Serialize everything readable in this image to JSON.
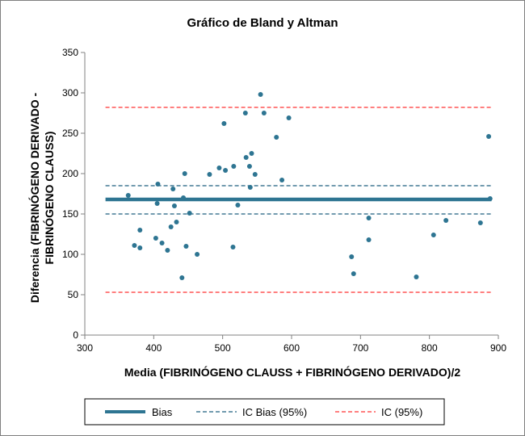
{
  "chart_data": {
    "type": "scatter",
    "title": "Gráfico de Bland y Altman",
    "xlabel": "Media  (FIBRINÓGENO CLAUSS + FIBRINÓGENO DERIVADO)/2",
    "ylabel_lines": [
      "Diferencia  (FIBRINÓGENO DERIVADO -",
      "FIBRINÓGENO CLAUSS)"
    ],
    "xlim": [
      300,
      900
    ],
    "ylim": [
      0,
      350
    ],
    "xticks": [
      300,
      400,
      500,
      600,
      700,
      800,
      900
    ],
    "yticks": [
      0,
      50,
      100,
      150,
      200,
      250,
      300,
      350
    ],
    "grid": false,
    "legend_position": "bottom",
    "points": [
      {
        "x": 363,
        "y": 173
      },
      {
        "x": 372,
        "y": 111
      },
      {
        "x": 380,
        "y": 130
      },
      {
        "x": 380,
        "y": 108
      },
      {
        "x": 403,
        "y": 120
      },
      {
        "x": 405,
        "y": 163
      },
      {
        "x": 406,
        "y": 187
      },
      {
        "x": 412,
        "y": 114
      },
      {
        "x": 420,
        "y": 105
      },
      {
        "x": 425,
        "y": 134
      },
      {
        "x": 428,
        "y": 181
      },
      {
        "x": 430,
        "y": 160
      },
      {
        "x": 433,
        "y": 140
      },
      {
        "x": 441,
        "y": 71
      },
      {
        "x": 443,
        "y": 170
      },
      {
        "x": 445,
        "y": 200
      },
      {
        "x": 447,
        "y": 110
      },
      {
        "x": 452,
        "y": 151
      },
      {
        "x": 463,
        "y": 100
      },
      {
        "x": 481,
        "y": 199
      },
      {
        "x": 495,
        "y": 207
      },
      {
        "x": 502,
        "y": 262
      },
      {
        "x": 504,
        "y": 204
      },
      {
        "x": 515,
        "y": 109
      },
      {
        "x": 516,
        "y": 209
      },
      {
        "x": 522,
        "y": 161
      },
      {
        "x": 533,
        "y": 275
      },
      {
        "x": 534,
        "y": 220
      },
      {
        "x": 539,
        "y": 209
      },
      {
        "x": 540,
        "y": 183
      },
      {
        "x": 542,
        "y": 225
      },
      {
        "x": 547,
        "y": 199
      },
      {
        "x": 555,
        "y": 298
      },
      {
        "x": 560,
        "y": 275
      },
      {
        "x": 578,
        "y": 245
      },
      {
        "x": 586,
        "y": 192
      },
      {
        "x": 596,
        "y": 269
      },
      {
        "x": 687,
        "y": 97
      },
      {
        "x": 690,
        "y": 76
      },
      {
        "x": 712,
        "y": 145
      },
      {
        "x": 712,
        "y": 118
      },
      {
        "x": 781,
        "y": 72
      },
      {
        "x": 806,
        "y": 124
      },
      {
        "x": 824,
        "y": 142
      },
      {
        "x": 874,
        "y": 139
      },
      {
        "x": 886,
        "y": 246
      },
      {
        "x": 888,
        "y": 169
      }
    ],
    "lines": {
      "bias": {
        "y": 168,
        "x_range": [
          330,
          890
        ]
      },
      "ci_bias": {
        "y": [
          150,
          185
        ],
        "x_range": [
          330,
          890
        ]
      },
      "ci_95": {
        "y": [
          53,
          282
        ],
        "x_range": [
          330,
          890
        ]
      }
    },
    "colors": {
      "points": "#2e7592",
      "bias": "#2e7592",
      "ci_bias": "#1f5f7f",
      "ci_95": "#ff3333"
    },
    "legend": [
      {
        "key": "bias",
        "label": "Bias"
      },
      {
        "key": "ci_bias",
        "label": "IC Bias (95%)"
      },
      {
        "key": "ci_95",
        "label": "IC (95%)"
      }
    ]
  }
}
